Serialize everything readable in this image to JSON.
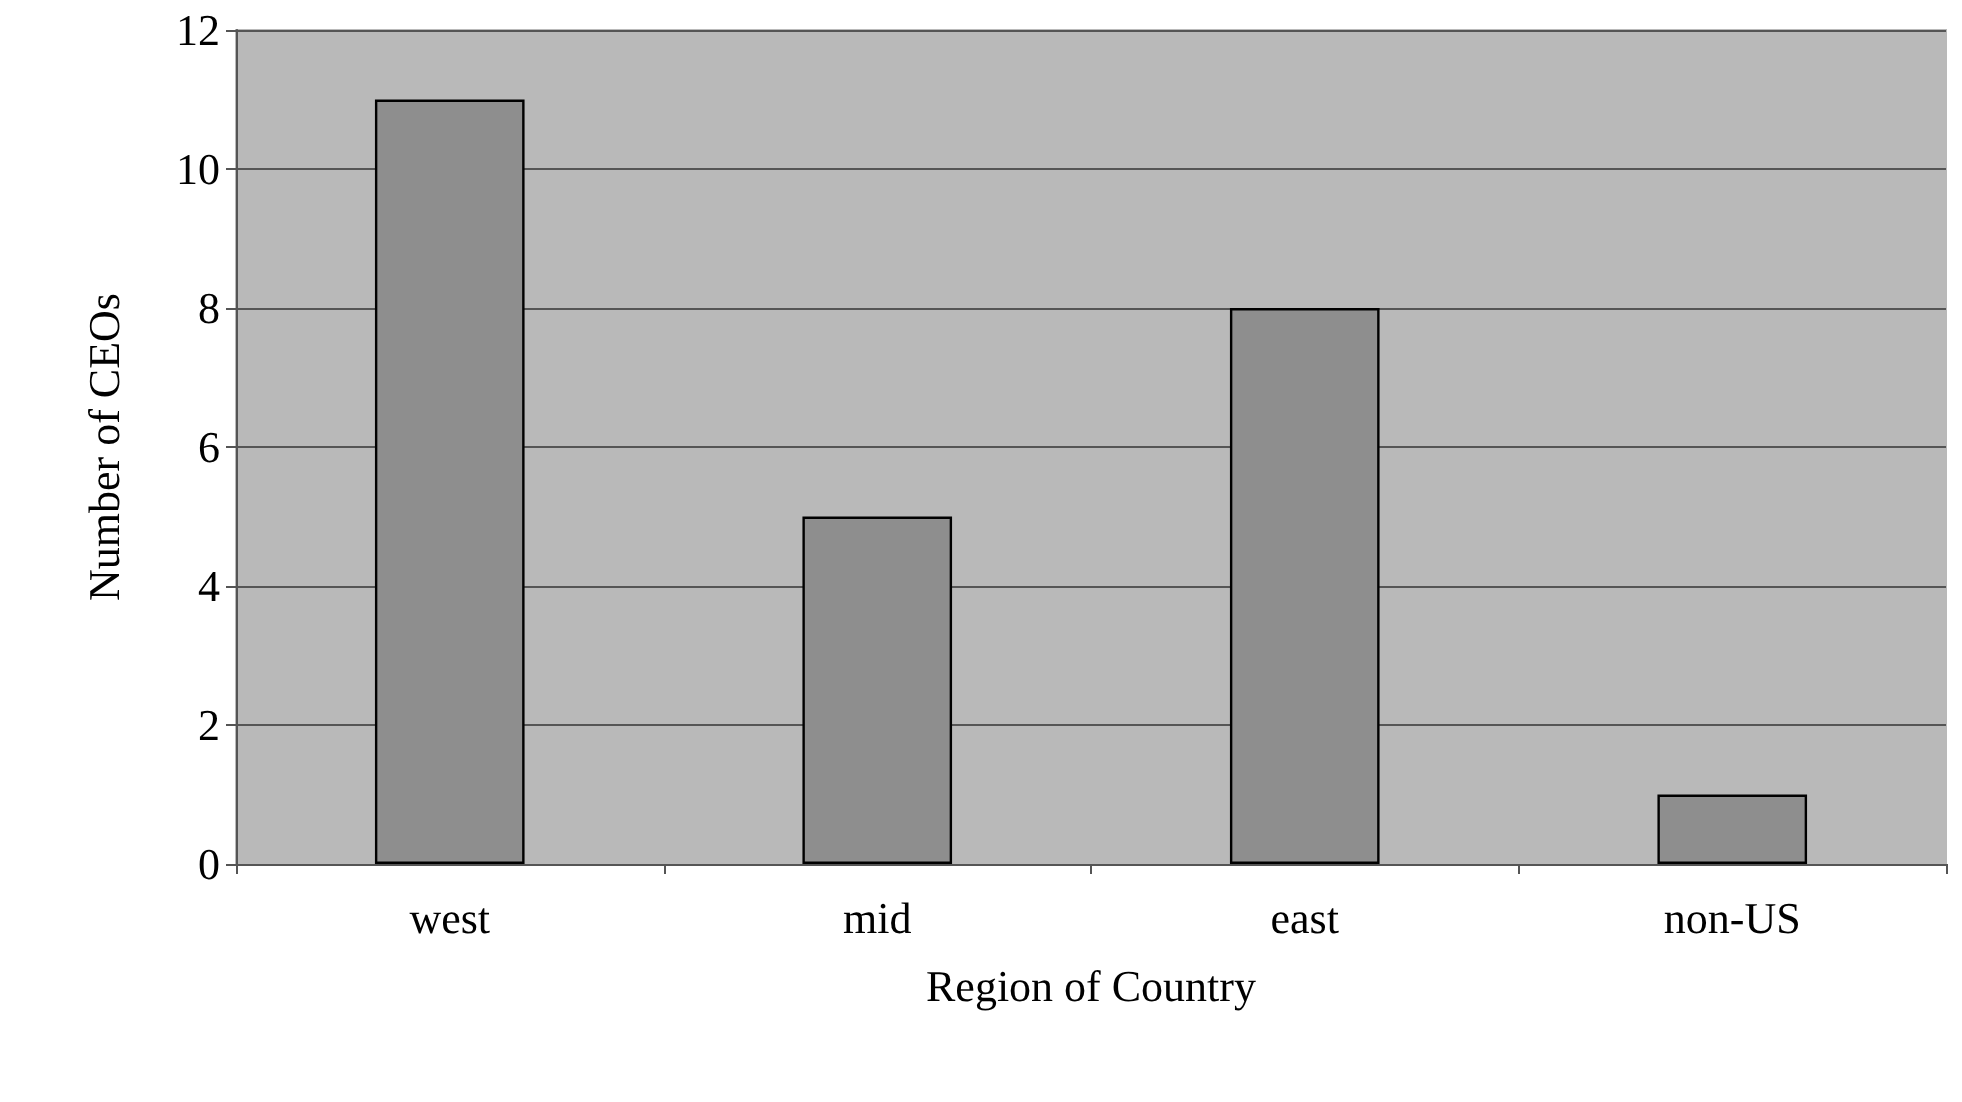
{
  "chart_data": {
    "type": "bar",
    "xlabel": "Region of Country",
    "ylabel": "Number of CEOs",
    "categories": [
      "west",
      "mid",
      "east",
      "non-US"
    ],
    "values": [
      11,
      5,
      8,
      1
    ],
    "color": "#8e8e8e",
    "ylim": [
      0,
      12
    ],
    "yticks": [
      0,
      2,
      4,
      6,
      8,
      10,
      12
    ],
    "grid": "y"
  }
}
